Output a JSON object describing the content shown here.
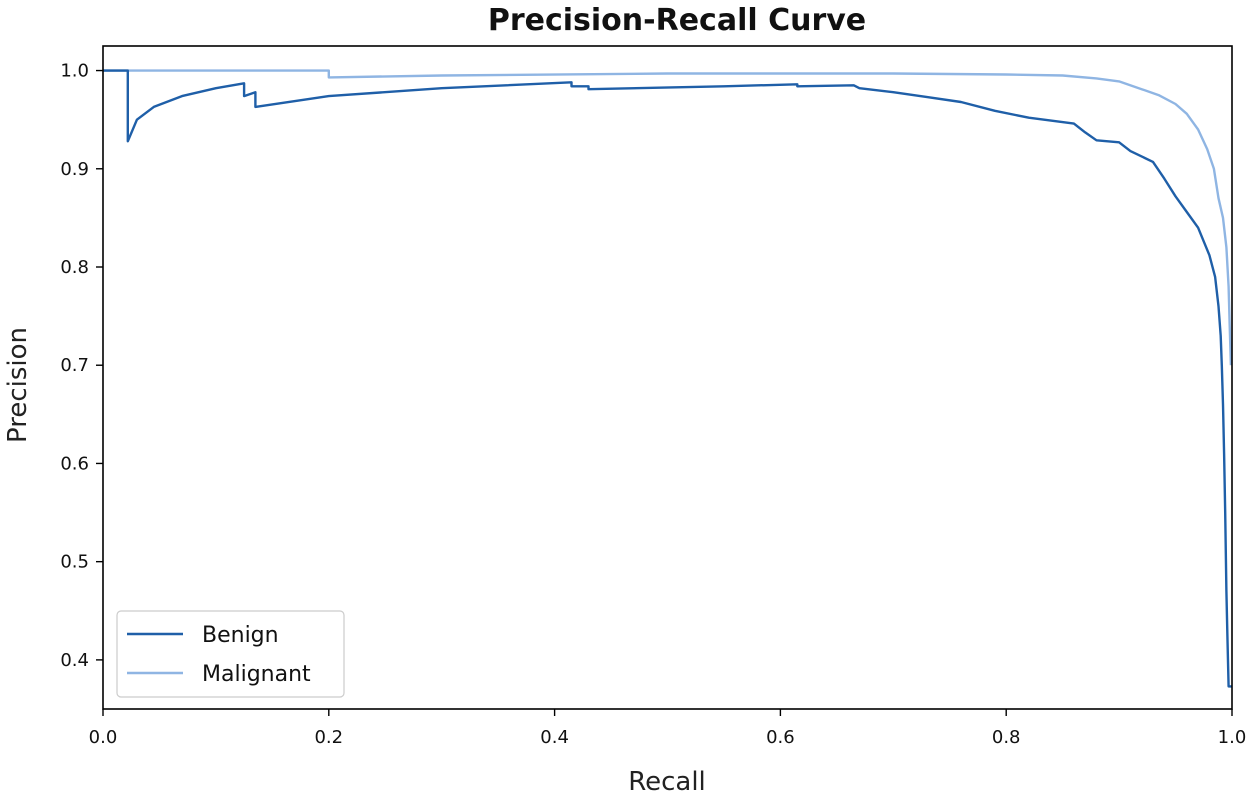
{
  "chart_data": {
    "type": "line",
    "title": "Precision-Recall Curve",
    "xlabel": "Recall",
    "ylabel": "Precision",
    "xlim": [
      0.0,
      1.0
    ],
    "ylim": [
      0.35,
      1.025
    ],
    "grid": false,
    "legend_position": "lower-left",
    "x_ticks": [
      {
        "value": 0.0,
        "label": "0.0"
      },
      {
        "value": 0.2,
        "label": "0.2"
      },
      {
        "value": 0.4,
        "label": "0.4"
      },
      {
        "value": 0.6,
        "label": "0.6"
      },
      {
        "value": 0.8,
        "label": "0.8"
      },
      {
        "value": 1.0,
        "label": "1.0"
      }
    ],
    "y_ticks": [
      {
        "value": 0.4,
        "label": "0.4"
      },
      {
        "value": 0.5,
        "label": "0.5"
      },
      {
        "value": 0.6,
        "label": "0.6"
      },
      {
        "value": 0.7,
        "label": "0.7"
      },
      {
        "value": 0.8,
        "label": "0.8"
      },
      {
        "value": 0.9,
        "label": "0.9"
      },
      {
        "value": 1.0,
        "label": "1.0"
      }
    ],
    "series": [
      {
        "name": "Benign",
        "color": "#1f5fa8",
        "points": [
          [
            0.0,
            1.0
          ],
          [
            0.022,
            1.0
          ],
          [
            0.022,
            0.928
          ],
          [
            0.03,
            0.95
          ],
          [
            0.045,
            0.963
          ],
          [
            0.07,
            0.974
          ],
          [
            0.1,
            0.982
          ],
          [
            0.125,
            0.987
          ],
          [
            0.125,
            0.974
          ],
          [
            0.135,
            0.978
          ],
          [
            0.135,
            0.963
          ],
          [
            0.2,
            0.974
          ],
          [
            0.3,
            0.982
          ],
          [
            0.415,
            0.988
          ],
          [
            0.415,
            0.984
          ],
          [
            0.43,
            0.984
          ],
          [
            0.43,
            0.981
          ],
          [
            0.55,
            0.984
          ],
          [
            0.615,
            0.986
          ],
          [
            0.615,
            0.984
          ],
          [
            0.665,
            0.985
          ],
          [
            0.67,
            0.982
          ],
          [
            0.7,
            0.978
          ],
          [
            0.73,
            0.973
          ],
          [
            0.76,
            0.968
          ],
          [
            0.79,
            0.959
          ],
          [
            0.82,
            0.952
          ],
          [
            0.86,
            0.946
          ],
          [
            0.87,
            0.937
          ],
          [
            0.88,
            0.929
          ],
          [
            0.9,
            0.927
          ],
          [
            0.91,
            0.918
          ],
          [
            0.93,
            0.907
          ],
          [
            0.94,
            0.89
          ],
          [
            0.95,
            0.872
          ],
          [
            0.96,
            0.856
          ],
          [
            0.97,
            0.84
          ],
          [
            0.98,
            0.812
          ],
          [
            0.985,
            0.79
          ],
          [
            0.988,
            0.76
          ],
          [
            0.99,
            0.73
          ],
          [
            0.991,
            0.7
          ],
          [
            0.992,
            0.66
          ],
          [
            0.993,
            0.61
          ],
          [
            0.994,
            0.55
          ],
          [
            0.995,
            0.47
          ],
          [
            0.996,
            0.42
          ],
          [
            0.997,
            0.373
          ],
          [
            1.0,
            0.373
          ]
        ]
      },
      {
        "name": "Malignant",
        "color": "#8fb5e3",
        "points": [
          [
            0.0,
            1.0
          ],
          [
            0.2,
            1.0
          ],
          [
            0.2,
            0.993
          ],
          [
            0.3,
            0.995
          ],
          [
            0.5,
            0.997
          ],
          [
            0.7,
            0.997
          ],
          [
            0.8,
            0.996
          ],
          [
            0.85,
            0.995
          ],
          [
            0.88,
            0.992
          ],
          [
            0.9,
            0.989
          ],
          [
            0.92,
            0.981
          ],
          [
            0.935,
            0.975
          ],
          [
            0.95,
            0.966
          ],
          [
            0.96,
            0.956
          ],
          [
            0.97,
            0.94
          ],
          [
            0.978,
            0.92
          ],
          [
            0.984,
            0.9
          ],
          [
            0.988,
            0.87
          ],
          [
            0.992,
            0.85
          ],
          [
            0.995,
            0.82
          ],
          [
            0.997,
            0.78
          ],
          [
            0.998,
            0.74
          ],
          [
            0.999,
            0.7
          ]
        ]
      }
    ]
  }
}
